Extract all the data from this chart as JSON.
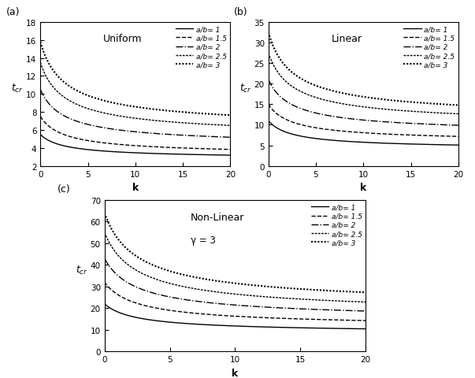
{
  "title_a": "(a)",
  "title_b": "(b)",
  "title_c": "(c)",
  "label_uniform": "Uniform",
  "label_linear": "Linear",
  "label_nonlinear": "Non-Linear",
  "label_gamma": "γ = 3",
  "xlabel": "k",
  "ylabel_latex": "$t_{cr}$",
  "k_max": 20,
  "legend_labels": [
    "a/b= 1",
    "a/b= 1.5",
    "a/b= 2",
    "a/b= 2.5",
    "a/b= 3"
  ],
  "uniform_ylim": [
    2,
    18
  ],
  "uniform_yticks": [
    2,
    4,
    6,
    8,
    10,
    12,
    14,
    16,
    18
  ],
  "uniform_k0_vals": [
    5.5,
    7.5,
    10.5,
    13.5,
    15.8
  ],
  "uniform_kinf_vals": [
    2.7,
    3.05,
    4.05,
    5.0,
    5.9
  ],
  "uniform_alpha": [
    0.55,
    0.55,
    0.55,
    0.55,
    0.55
  ],
  "linear_ylim": [
    0,
    35
  ],
  "linear_yticks": [
    0,
    5,
    10,
    15,
    20,
    25,
    30,
    35
  ],
  "linear_k0_vals": [
    11.0,
    15.0,
    21.0,
    27.5,
    32.5
  ],
  "linear_kinf_vals": [
    3.8,
    5.5,
    7.5,
    9.5,
    11.0
  ],
  "linear_alpha": [
    0.55,
    0.55,
    0.55,
    0.55,
    0.55
  ],
  "nonlinear_ylim": [
    0,
    70
  ],
  "nonlinear_yticks": [
    0,
    10,
    20,
    30,
    40,
    50,
    60,
    70
  ],
  "nonlinear_k0_vals": [
    22.0,
    32.0,
    43.0,
    55.0,
    64.0
  ],
  "nonlinear_kinf_vals": [
    8.0,
    10.5,
    13.5,
    16.0,
    19.5
  ],
  "nonlinear_alpha": [
    0.55,
    0.55,
    0.55,
    0.55,
    0.55
  ]
}
